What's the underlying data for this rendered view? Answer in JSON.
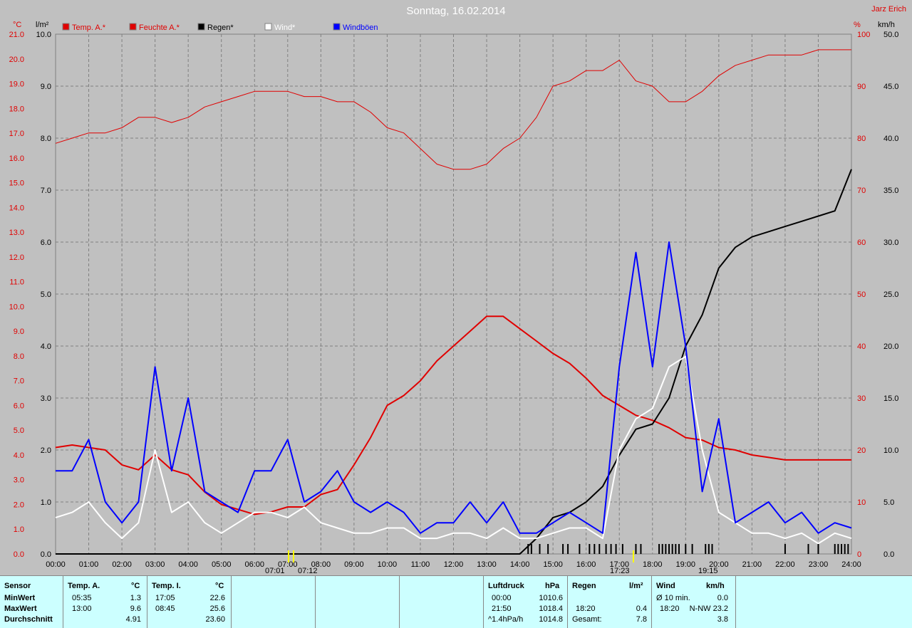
{
  "title": "Sonntag, 16.02.2014",
  "author": "Jarz Erich",
  "axis_units": {
    "left_outer": "°C",
    "left_inner": "l/m²",
    "right_inner": "%",
    "right_outer": "km/h"
  },
  "legend": [
    {
      "label": "Temp. A.*",
      "color": "#e00000"
    },
    {
      "label": "Feuchte A.*",
      "color": "#e00000"
    },
    {
      "label": "Regen*",
      "color": "#000000"
    },
    {
      "label": "Wind*",
      "color": "#ffffff"
    },
    {
      "label": "Windböen",
      "color": "#0000ff"
    }
  ],
  "markers": {
    "sunrise": "07:01",
    "sunrise2": "07:12",
    "moon": "17:23",
    "sunset": "19:15"
  },
  "chart_data": {
    "type": "line",
    "x_hours": [
      0,
      0.5,
      1,
      1.5,
      2,
      2.5,
      3,
      3.5,
      4,
      4.5,
      5,
      5.5,
      6,
      6.5,
      7,
      7.5,
      8,
      8.5,
      9,
      9.5,
      10,
      10.5,
      11,
      11.5,
      12,
      12.5,
      13,
      13.5,
      14,
      14.5,
      15,
      15.5,
      16,
      16.5,
      17,
      17.5,
      18,
      18.5,
      19,
      19.5,
      20,
      20.5,
      21,
      21.5,
      22,
      22.5,
      23,
      23.5,
      24
    ],
    "x_ticks": [
      "00:00",
      "01:00",
      "02:00",
      "03:00",
      "04:00",
      "05:00",
      "06:00",
      "07:00",
      "08:00",
      "09:00",
      "10:00",
      "11:00",
      "12:00",
      "13:00",
      "14:00",
      "15:00",
      "16:00",
      "17:00",
      "18:00",
      "19:00",
      "20:00",
      "21:00",
      "22:00",
      "23:00",
      "24:00"
    ],
    "axes": {
      "temp_c": {
        "min": 0.0,
        "max": 21.0,
        "step": 1.0
      },
      "rain_lm2": {
        "min": 0.0,
        "max": 10.0,
        "step": 1.0
      },
      "humidity_pct": {
        "min": 0,
        "max": 100,
        "step": 10
      },
      "wind_kmh": {
        "min": 0.0,
        "max": 50.0,
        "step": 5.0
      }
    },
    "grid": true,
    "series": [
      {
        "name": "Temp. A.*",
        "axis": "temp_c",
        "color": "#e00000",
        "width": 2,
        "values": [
          4.3,
          4.4,
          4.3,
          4.2,
          3.6,
          3.4,
          4.0,
          3.4,
          3.2,
          2.5,
          2.0,
          1.8,
          1.6,
          1.7,
          1.9,
          1.9,
          2.4,
          2.6,
          3.6,
          4.7,
          6.0,
          6.4,
          7.0,
          7.8,
          8.4,
          9.0,
          9.6,
          9.6,
          9.1,
          8.6,
          8.1,
          7.7,
          7.1,
          6.4,
          6.0,
          5.6,
          5.4,
          5.1,
          4.7,
          4.6,
          4.3,
          4.2,
          4.0,
          3.9,
          3.8,
          3.8,
          3.8,
          3.8,
          3.8
        ]
      },
      {
        "name": "Feuchte A.*",
        "axis": "humidity_pct",
        "color": "#e00000",
        "width": 1,
        "values": [
          79,
          80,
          81,
          81,
          82,
          84,
          84,
          83,
          84,
          86,
          87,
          88,
          89,
          89,
          89,
          88,
          88,
          87,
          87,
          85,
          82,
          81,
          78,
          75,
          74,
          74,
          75,
          78,
          80,
          84,
          90,
          91,
          93,
          93,
          95,
          91,
          90,
          87,
          87,
          89,
          92,
          94,
          95,
          96,
          96,
          96,
          97,
          97,
          97
        ]
      },
      {
        "name": "Regen*",
        "axis": "rain_lm2",
        "color": "#000000",
        "width": 2,
        "values": [
          0,
          0,
          0,
          0,
          0,
          0,
          0,
          0,
          0,
          0,
          0,
          0,
          0,
          0,
          0,
          0,
          0,
          0,
          0,
          0,
          0,
          0,
          0,
          0,
          0,
          0,
          0,
          0,
          0,
          0.3,
          0.7,
          0.8,
          1.0,
          1.3,
          1.9,
          2.4,
          2.5,
          3.0,
          4.0,
          4.6,
          5.5,
          5.9,
          6.1,
          6.2,
          6.3,
          6.4,
          6.5,
          6.6,
          7.4
        ]
      },
      {
        "name": "Wind*",
        "axis": "wind_kmh",
        "color": "#ffffff",
        "width": 2,
        "values": [
          3.5,
          4,
          5,
          3,
          1.5,
          3,
          10,
          4,
          5,
          3,
          2,
          3,
          4,
          4,
          3.5,
          4.5,
          3,
          2.5,
          2,
          2,
          2.5,
          2.5,
          1.5,
          1.5,
          2,
          2,
          1.5,
          2.5,
          1.5,
          1.5,
          2,
          2.5,
          2.5,
          1.5,
          10,
          13,
          14,
          18,
          19,
          10,
          4,
          3,
          2,
          2,
          1.5,
          2,
          1,
          2,
          1.5
        ]
      },
      {
        "name": "Windböen",
        "axis": "wind_kmh",
        "color": "#0000ff",
        "width": 2,
        "values": [
          8,
          8,
          11,
          5,
          3,
          5,
          18,
          8,
          15,
          6,
          5,
          4,
          8,
          8,
          11,
          5,
          6,
          8,
          5,
          4,
          5,
          4,
          2,
          3,
          3,
          5,
          3,
          5,
          2,
          2,
          3,
          4,
          3,
          2,
          18,
          29,
          18,
          30,
          20,
          6,
          13,
          3,
          4,
          5,
          3,
          4,
          2,
          3,
          2.5
        ]
      }
    ],
    "rain_ticks": [
      14.25,
      14.35,
      14.6,
      14.85,
      15.3,
      15.45,
      15.8,
      16.1,
      16.25,
      16.4,
      16.6,
      16.75,
      16.9,
      17.1,
      17.5,
      17.65,
      18.2,
      18.3,
      18.4,
      18.5,
      18.6,
      18.7,
      18.8,
      19.0,
      19.2,
      19.6,
      19.7,
      19.8,
      22.0,
      22.7,
      23.0,
      23.5,
      23.6,
      23.7,
      23.8,
      23.9
    ]
  },
  "table": {
    "sensor_col": {
      "header": "Sensor",
      "rows": [
        "MinWert",
        "MaxWert",
        "Durchschnitt"
      ]
    },
    "temp_a": {
      "header": "Temp. A.",
      "unit": "°C",
      "rows": [
        {
          "time": "05:35",
          "value": "1.3"
        },
        {
          "time": "13:00",
          "value": "9.6"
        },
        {
          "time": "",
          "value": "4.91"
        }
      ]
    },
    "temp_i": {
      "header": "Temp. I.",
      "unit": "°C",
      "rows": [
        {
          "time": "17:05",
          "value": "22.6"
        },
        {
          "time": "08:45",
          "value": "25.6"
        },
        {
          "time": "",
          "value": "23.60"
        }
      ]
    },
    "luftdruck": {
      "header": "Luftdruck",
      "unit": "hPa",
      "rows": [
        {
          "time": "00:00",
          "value": "1010.6"
        },
        {
          "time": "21:50",
          "value": "1018.4"
        },
        {
          "time": "^1.4hPa/h",
          "value": "1014.8"
        }
      ]
    },
    "regen": {
      "header": "Regen",
      "unit": "l/m²",
      "rows": [
        {
          "time": "",
          "value": ""
        },
        {
          "time": "18:20",
          "value": "0.4"
        },
        {
          "time": "Gesamt:",
          "value": "7.8"
        }
      ]
    },
    "wind": {
      "header": "Wind",
      "unit": "km/h",
      "rows": [
        {
          "time": "Ø 10 min.",
          "value": "0.0"
        },
        {
          "time": "18:20",
          "value": "N-NW 23.2"
        },
        {
          "time": "",
          "value": "3.8"
        }
      ]
    }
  }
}
